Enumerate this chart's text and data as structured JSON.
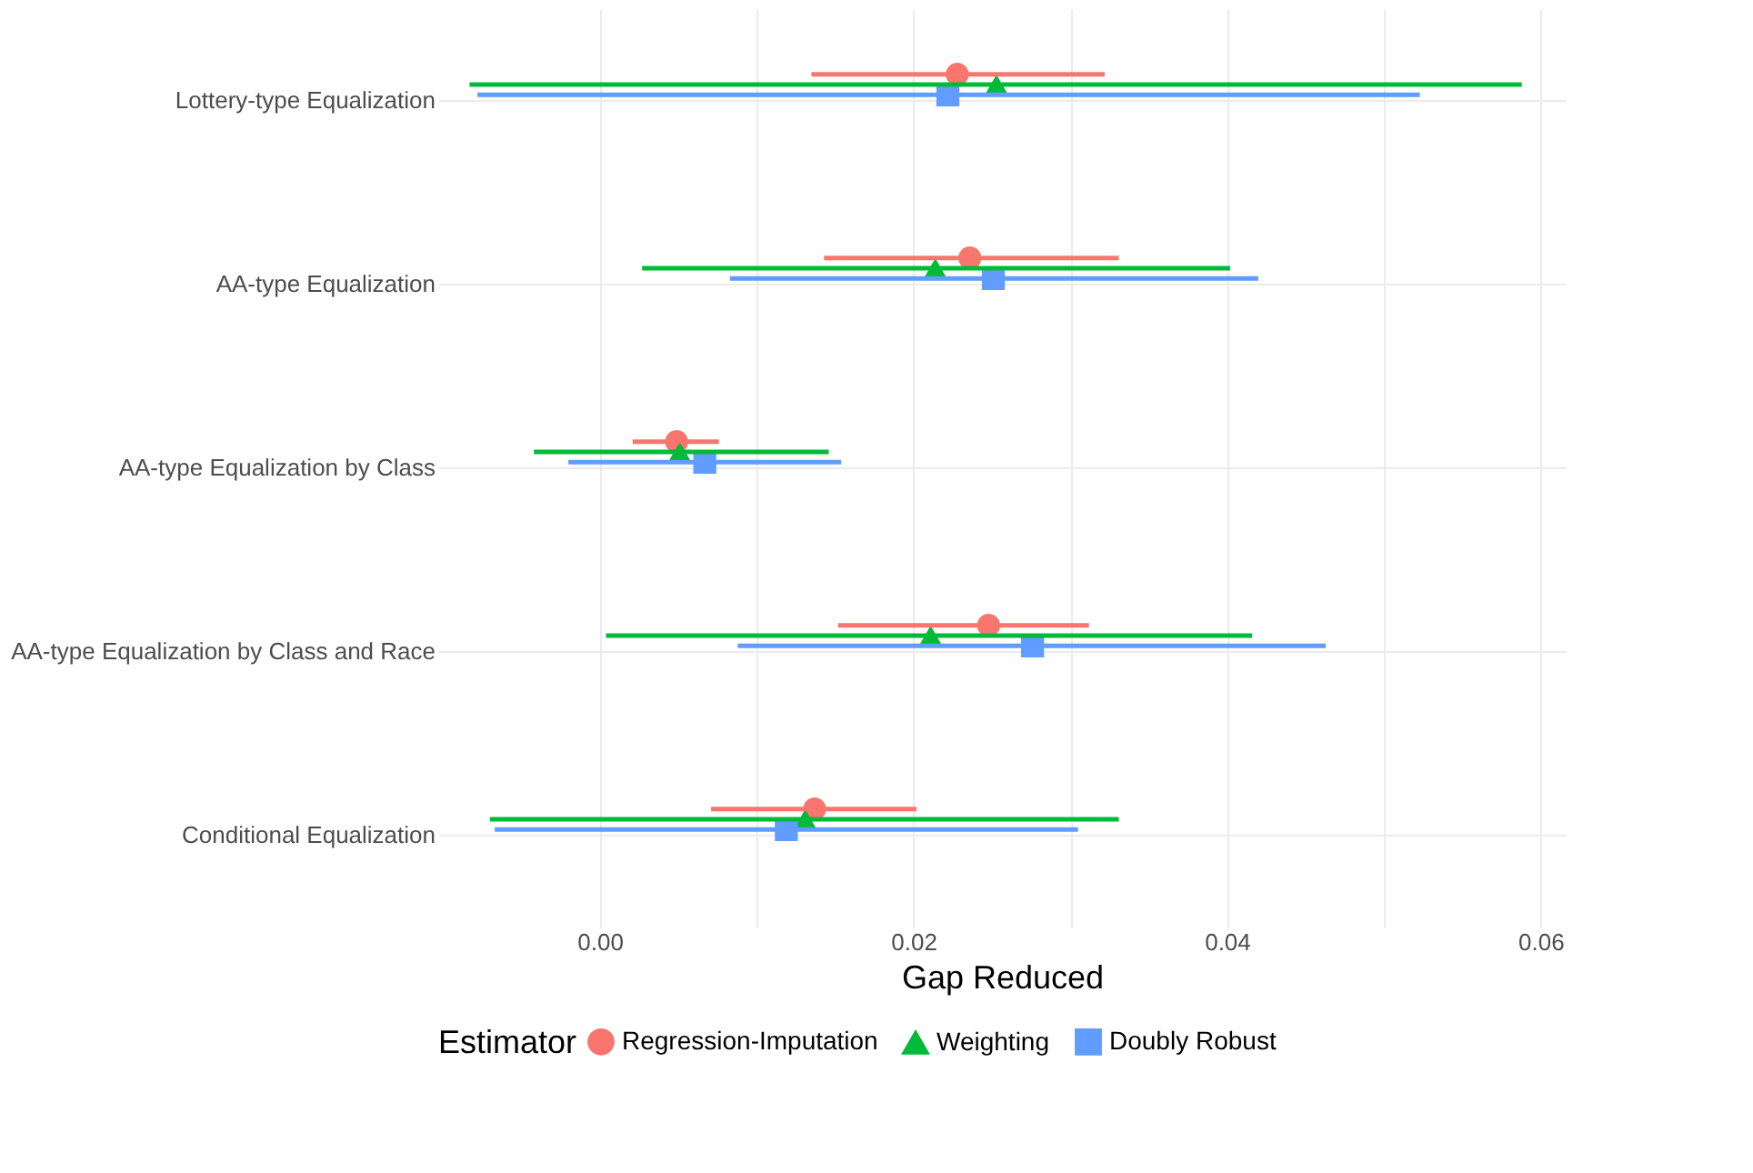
{
  "chart_data": {
    "type": "scatter",
    "orientation": "horizontal",
    "xlabel": "Gap Reduced",
    "legend_title": "Estimator",
    "legend": "bottom",
    "grid": true,
    "categories": [
      "Lottery-type Equalization",
      "AA-type Equalization",
      "AA-type Equalization by Class",
      "AA-type Equalization by Class and Race",
      "Conditional Equalization"
    ],
    "xlim": [
      -0.0103,
      0.0616
    ],
    "xticks": [
      {
        "value": 0,
        "label": "0.00"
      },
      {
        "value": 0.01,
        "label": null
      },
      {
        "value": 0.02,
        "label": "0.02"
      },
      {
        "value": 0.03,
        "label": null
      },
      {
        "value": 0.04,
        "label": "0.04"
      },
      {
        "value": 0.05,
        "label": null
      },
      {
        "value": 0.06,
        "label": "0.06"
      }
    ],
    "series": [
      {
        "name": "Regression-Imputation",
        "color": "#f8766d",
        "marker": "circle",
        "values": [
          0.0228,
          0.0236,
          0.0049,
          0.0248,
          0.0137
        ],
        "errors": [
          [
            0.0135,
            0.0322
          ],
          [
            0.0143,
            0.0331
          ],
          [
            0.0021,
            0.0076
          ],
          [
            0.0152,
            0.0312
          ],
          [
            0.0071,
            0.0202
          ]
        ]
      },
      {
        "name": "Weighting",
        "color": "#00ba38",
        "marker": "triangle",
        "values": [
          0.0253,
          0.0214,
          0.0051,
          0.0211,
          0.0131
        ],
        "errors": [
          [
            -0.0083,
            0.0588
          ],
          [
            0.0027,
            0.0402
          ],
          [
            -0.0042,
            0.0146
          ],
          [
            0.0004,
            0.0416
          ],
          [
            -0.007,
            0.0331
          ]
        ]
      },
      {
        "name": "Doubly Robust",
        "color": "#619cff",
        "marker": "square",
        "values": [
          0.0222,
          0.0251,
          0.0067,
          0.0276,
          0.0119
        ],
        "errors": [
          [
            -0.0078,
            0.0523
          ],
          [
            0.0083,
            0.042
          ],
          [
            -0.002,
            0.0154
          ],
          [
            0.0088,
            0.0463
          ],
          [
            -0.0067,
            0.0305
          ]
        ]
      }
    ]
  }
}
